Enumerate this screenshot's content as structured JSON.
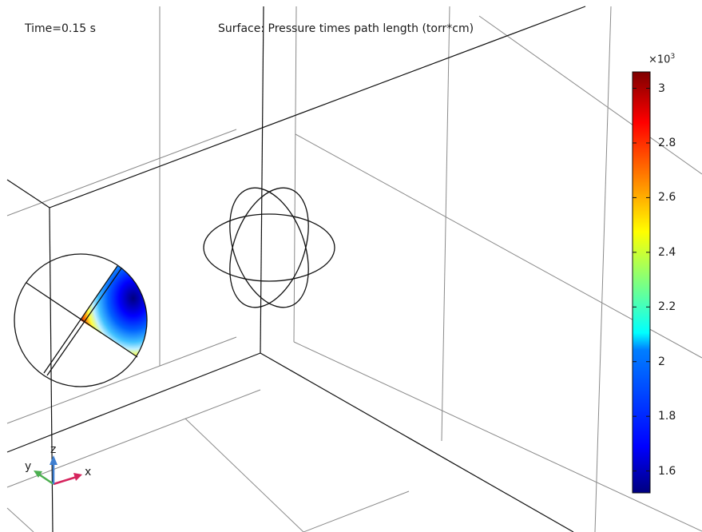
{
  "time_label": "Time=0.15 s",
  "plot_title": "Surface: Pressure times path length (torr*cm)",
  "colorbar": {
    "multiplier_base": "×10",
    "multiplier_exp": "3",
    "ticks": [
      "3",
      "2.8",
      "2.6",
      "2.4",
      "2.2",
      "2",
      "1.8",
      "1.6"
    ],
    "min": 1.52,
    "max": 3.06,
    "colormap": [
      "#00007f",
      "#0000ff",
      "#007fff",
      "#00ffff",
      "#7fff7f",
      "#ffff00",
      "#ff7f00",
      "#ff0000",
      "#7f0000"
    ]
  },
  "axes": {
    "x": {
      "label": "x",
      "color": "#d6255e"
    },
    "y": {
      "label": "y",
      "color": "#4caf50"
    },
    "z": {
      "label": "z",
      "color": "#3f7fd0"
    }
  }
}
